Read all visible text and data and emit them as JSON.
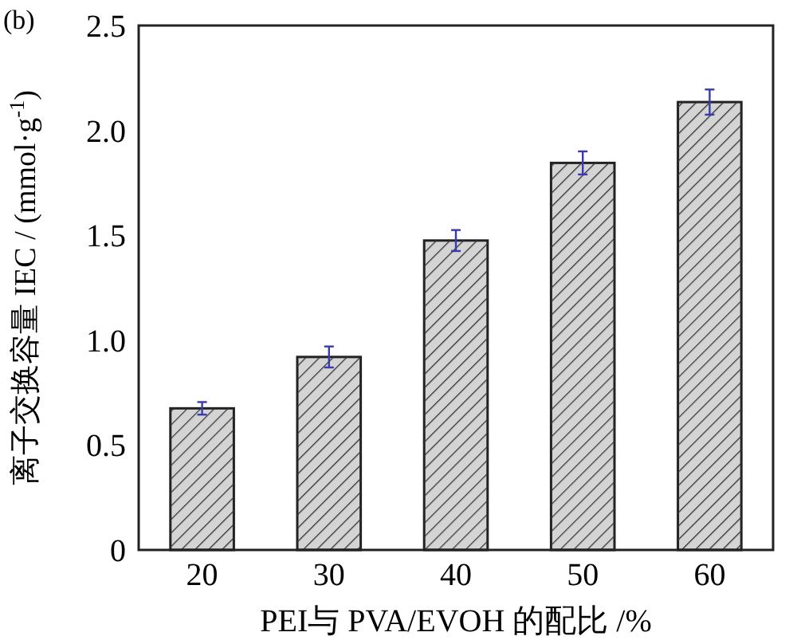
{
  "chart_data": {
    "type": "bar",
    "xlabel": "PEI与 PVA/EVOH 的配比 /%",
    "ylabel": "离子交换容量 IEC / (mmol·g$^{-1}$)",
    "annotations": [
      "(b)"
    ],
    "categories": [
      "20",
      "30",
      "40",
      "50",
      "60"
    ],
    "values": [
      0.675,
      0.92,
      1.475,
      1.845,
      2.135
    ],
    "color": "#d4d4d4",
    "errors": [
      0.03,
      0.05,
      0.05,
      0.055,
      0.06
    ],
    "ylim": [
      0,
      2.5
    ],
    "yticks": [
      0,
      {
        "value": 0.5,
        "label": "0.5"
      },
      {
        "value": 1,
        "label": "1.0"
      },
      {
        "value": 1.5,
        "label": "1.5"
      },
      {
        "value": 2,
        "label": "2.0"
      },
      {
        "value": 2.5,
        "label": "2.5"
      }
    ],
    "grid": false
  }
}
